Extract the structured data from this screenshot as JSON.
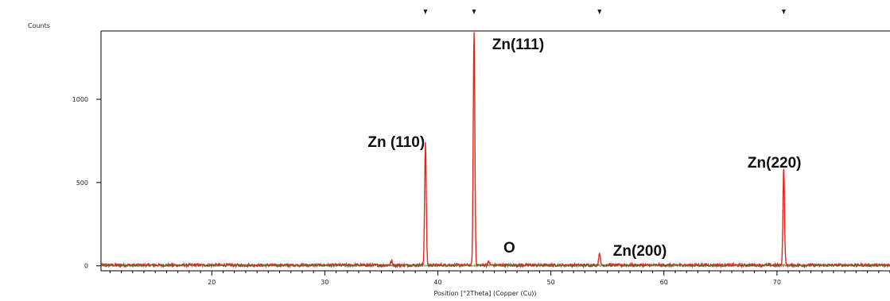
{
  "chart_data": {
    "type": "line",
    "title": "",
    "xlabel": "Position [°2Theta] (Copper (Cu))",
    "ylabel": "Counts",
    "xlim": [
      10.2,
      80
    ],
    "ylim": [
      -30,
      1410
    ],
    "x_ticks": [
      20,
      30,
      40,
      50,
      60,
      70
    ],
    "x_tick_labels": [
      "20",
      "30",
      "40",
      "50",
      "60",
      "70"
    ],
    "y_ticks": [
      0,
      500,
      1000
    ],
    "y_tick_labels": [
      "0",
      "500",
      "1000"
    ],
    "grid": false,
    "legend": "none",
    "series": [
      {
        "color": "#e8221a",
        "peaks": [
          {
            "x": 35.9,
            "y": 25
          },
          {
            "x": 38.9,
            "y": 735
          },
          {
            "x": 43.2,
            "y": 1400
          },
          {
            "x": 44.5,
            "y": 22
          },
          {
            "x": 54.3,
            "y": 75
          },
          {
            "x": 70.6,
            "y": 590
          }
        ]
      },
      {
        "color": "#3f7f2f",
        "peaks": []
      }
    ],
    "top_markers": [
      38.9,
      43.2,
      54.3,
      70.6
    ],
    "annotations": [
      {
        "text": "Zn(111)",
        "x": 44.8,
        "y": 1300
      },
      {
        "text": "Zn (110)",
        "x": 33.8,
        "y": 715
      },
      {
        "text": "Zn(220)",
        "x": 67.4,
        "y": 590
      },
      {
        "text": "O",
        "x": 45.8,
        "y": 80
      },
      {
        "text": "Zn(200)",
        "x": 55.5,
        "y": 60
      }
    ]
  }
}
